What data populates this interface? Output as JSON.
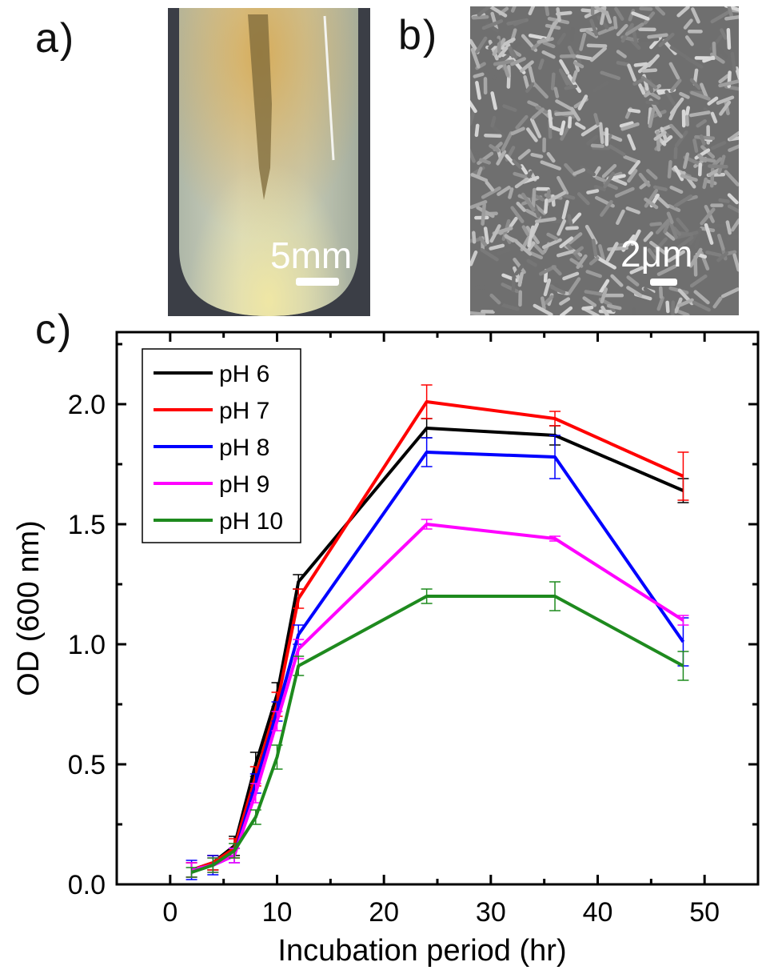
{
  "panels": {
    "a": {
      "label": "a)",
      "scale_label": "5mm"
    },
    "b": {
      "label": "b)",
      "scale_label": "2μm"
    },
    "c": {
      "label": "c)"
    }
  },
  "chart_data": {
    "type": "line",
    "xlabel": "Incubation period (hr)",
    "ylabel": "OD (600 nm)",
    "xlim": [
      -5,
      55
    ],
    "ylim": [
      0,
      2.3
    ],
    "xticks": [
      0,
      10,
      20,
      30,
      40,
      50
    ],
    "yticks": [
      0.0,
      0.5,
      1.0,
      1.5,
      2.0
    ],
    "xtick_labels": [
      "0",
      "10",
      "20",
      "30",
      "40",
      "50"
    ],
    "ytick_labels": [
      "0.0",
      "0.5",
      "1.0",
      "1.5",
      "2.0"
    ],
    "legend_position": "top-left",
    "grid": false,
    "x": [
      2,
      4,
      6,
      8,
      10,
      12,
      24,
      36,
      48
    ],
    "series": [
      {
        "name": "pH 6",
        "color": "#000000",
        "values": [
          0.06,
          0.09,
          0.16,
          0.5,
          0.79,
          1.26,
          1.9,
          1.87,
          1.64
        ],
        "errors": [
          0.03,
          0.03,
          0.04,
          0.05,
          0.05,
          0.03,
          0.04,
          0.04,
          0.05
        ]
      },
      {
        "name": "pH 7",
        "color": "#ff0000",
        "values": [
          0.06,
          0.09,
          0.15,
          0.45,
          0.75,
          1.19,
          2.01,
          1.94,
          1.7
        ],
        "errors": [
          0.03,
          0.03,
          0.04,
          0.04,
          0.05,
          0.04,
          0.07,
          0.03,
          0.1
        ]
      },
      {
        "name": "pH 8",
        "color": "#0000ff",
        "values": [
          0.06,
          0.08,
          0.12,
          0.42,
          0.72,
          1.04,
          1.8,
          1.78,
          1.01
        ],
        "errors": [
          0.04,
          0.04,
          0.03,
          0.04,
          0.04,
          0.04,
          0.06,
          0.09,
          0.1
        ]
      },
      {
        "name": "pH 9",
        "color": "#ff00ff",
        "values": [
          0.06,
          0.08,
          0.12,
          0.38,
          0.68,
          0.98,
          1.5,
          1.44,
          1.1
        ],
        "errors": [
          0.03,
          0.03,
          0.03,
          0.04,
          0.04,
          0.04,
          0.02,
          0.01,
          0.02
        ]
      },
      {
        "name": "pH 10",
        "color": "#1e8a1e",
        "values": [
          0.05,
          0.08,
          0.14,
          0.28,
          0.53,
          0.91,
          1.2,
          1.2,
          0.91
        ],
        "errors": [
          0.02,
          0.03,
          0.03,
          0.03,
          0.05,
          0.04,
          0.03,
          0.06,
          0.06
        ]
      }
    ]
  }
}
